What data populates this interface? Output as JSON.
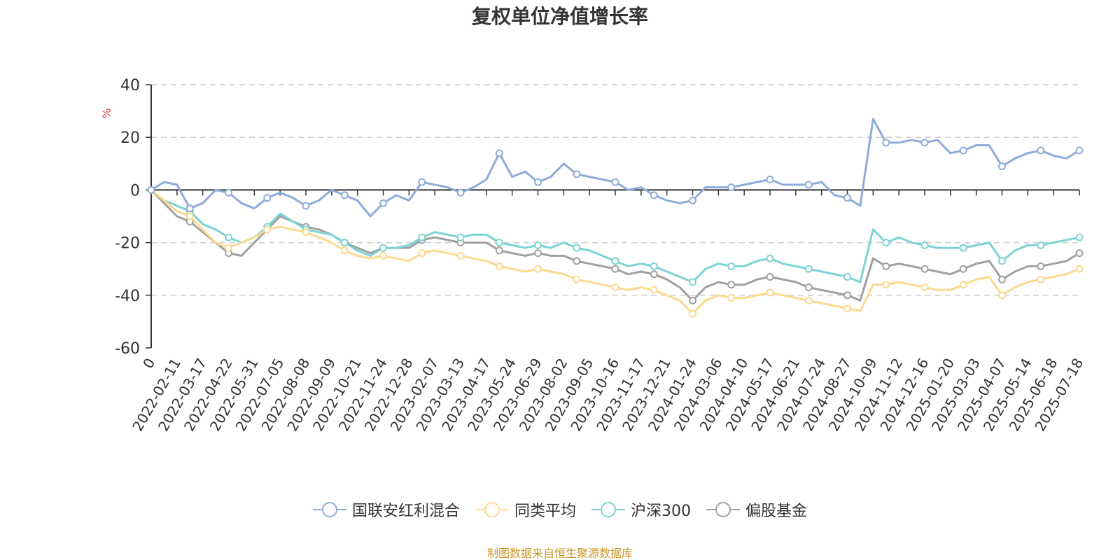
{
  "page_title": "复权单位净值增长率",
  "source_note": "制图数据来自恒生聚源数据库",
  "chart_data": {
    "type": "line",
    "title": "复权单位净值增长率",
    "xlabel": "",
    "ylabel": "%",
    "ylim": [
      -60,
      40
    ],
    "yticks": [
      40,
      20,
      0,
      -20,
      -40,
      -60
    ],
    "grid": "horizontal-dashed",
    "legend_position": "bottom-center",
    "x_tick_labels": [
      "0",
      "2022-02-11",
      "2022-03-17",
      "2022-04-22",
      "2022-05-31",
      "2022-07-05",
      "2022-08-08",
      "2022-09-09",
      "2022-10-21",
      "2022-11-24",
      "2022-12-28",
      "2023-02-07",
      "2023-03-13",
      "2023-04-17",
      "2023-05-24",
      "2023-06-29",
      "2023-08-02",
      "2023-09-05",
      "2023-10-16",
      "2023-11-17",
      "2023-12-21",
      "2024-01-24",
      "2024-03-06",
      "2024-04-10",
      "2024-05-17",
      "2024-06-21",
      "2024-07-24",
      "2024-08-27",
      "2024-10-09",
      "2024-11-12",
      "2024-12-16",
      "2025-01-20",
      "2025-03-03",
      "2025-04-07",
      "2025-05-14",
      "2025-06-18",
      "2025-07-18"
    ],
    "x": [
      "2022-01-06",
      "2022-01-20",
      "2022-02-11",
      "2022-02-25",
      "2022-03-17",
      "2022-04-01",
      "2022-04-22",
      "2022-05-12",
      "2022-05-31",
      "2022-06-17",
      "2022-07-05",
      "2022-07-20",
      "2022-08-08",
      "2022-08-24",
      "2022-09-09",
      "2022-09-28",
      "2022-10-21",
      "2022-11-08",
      "2022-11-24",
      "2022-12-12",
      "2022-12-28",
      "2023-01-16",
      "2023-02-07",
      "2023-02-23",
      "2023-03-13",
      "2023-03-29",
      "2023-04-17",
      "2023-05-06",
      "2023-05-24",
      "2023-06-09",
      "2023-06-29",
      "2023-07-17",
      "2023-08-02",
      "2023-08-18",
      "2023-09-05",
      "2023-09-21",
      "2023-10-16",
      "2023-11-01",
      "2023-11-17",
      "2023-12-05",
      "2023-12-21",
      "2024-01-08",
      "2024-01-24",
      "2024-02-19",
      "2024-03-06",
      "2024-03-22",
      "2024-04-10",
      "2024-04-26",
      "2024-05-17",
      "2024-06-04",
      "2024-06-21",
      "2024-07-08",
      "2024-07-24",
      "2024-08-09",
      "2024-08-27",
      "2024-09-13",
      "2024-10-09",
      "2024-10-25",
      "2024-11-12",
      "2024-11-28",
      "2024-12-16",
      "2025-01-02",
      "2025-01-20",
      "2025-02-12",
      "2025-03-03",
      "2025-03-19",
      "2025-04-07",
      "2025-04-23",
      "2025-05-14",
      "2025-05-30",
      "2025-06-18",
      "2025-07-03",
      "2025-07-18"
    ],
    "series": [
      {
        "name": "国联安红利混合",
        "color": "#8eacd9",
        "values": [
          0,
          3,
          2,
          -7,
          -5,
          0,
          -1,
          -5,
          -7,
          -3,
          -1,
          -3,
          -6,
          -4,
          0,
          -2,
          -4,
          -10,
          -5,
          -2,
          -4,
          3,
          2,
          1,
          -1,
          1,
          4,
          14,
          5,
          7,
          3,
          5,
          10,
          6,
          5,
          4,
          3,
          0,
          1,
          -2,
          -4,
          -5,
          -4,
          1,
          1,
          1,
          2,
          3,
          4,
          2,
          2,
          2,
          3,
          -2,
          -3,
          -6,
          27,
          18,
          18,
          19,
          18,
          19,
          14,
          15,
          17,
          17,
          9,
          12,
          14,
          15,
          13,
          12,
          15
        ]
      },
      {
        "name": "同类平均",
        "color": "#fcd98f",
        "values": [
          0,
          -4,
          -8,
          -10,
          -15,
          -20,
          -22,
          -20,
          -18,
          -15,
          -14,
          -15,
          -16,
          -18,
          -20,
          -23,
          -25,
          -26,
          -25,
          -26,
          -27,
          -24,
          -23,
          -24,
          -25,
          -26,
          -27,
          -29,
          -30,
          -31,
          -30,
          -31,
          -32,
          -34,
          -35,
          -36,
          -37,
          -38,
          -37,
          -38,
          -40,
          -42,
          -47,
          -42,
          -40,
          -41,
          -41,
          -40,
          -39,
          -40,
          -41,
          -42,
          -43,
          -44,
          -45,
          -46,
          -36,
          -36,
          -35,
          -36,
          -37,
          -38,
          -38,
          -36,
          -34,
          -33,
          -40,
          -37,
          -35,
          -34,
          -33,
          -32,
          -30
        ]
      },
      {
        "name": "沪深300",
        "color": "#7dd3d3",
        "values": [
          0,
          -4,
          -6,
          -8,
          -13,
          -15,
          -18,
          -20,
          -18,
          -14,
          -9,
          -12,
          -15,
          -16,
          -17,
          -20,
          -23,
          -25,
          -22,
          -22,
          -21,
          -18,
          -16,
          -17,
          -18,
          -17,
          -17,
          -20,
          -21,
          -22,
          -21,
          -22,
          -20,
          -22,
          -23,
          -25,
          -27,
          -29,
          -28,
          -29,
          -31,
          -33,
          -35,
          -30,
          -28,
          -29,
          -29,
          -27,
          -26,
          -28,
          -29,
          -30,
          -31,
          -32,
          -33,
          -35,
          -15,
          -20,
          -18,
          -20,
          -21,
          -22,
          -22,
          -22,
          -21,
          -20,
          -27,
          -23,
          -21,
          -21,
          -20,
          -19,
          -18
        ]
      },
      {
        "name": "偏股基金",
        "color": "#a0a0a0",
        "values": [
          0,
          -5,
          -10,
          -12,
          -16,
          -20,
          -24,
          -25,
          -20,
          -15,
          -10,
          -12,
          -14,
          -15,
          -17,
          -20,
          -22,
          -24,
          -22,
          -22,
          -22,
          -19,
          -18,
          -19,
          -20,
          -20,
          -20,
          -23,
          -24,
          -25,
          -24,
          -25,
          -25,
          -27,
          -28,
          -29,
          -30,
          -32,
          -31,
          -32,
          -34,
          -37,
          -42,
          -37,
          -35,
          -36,
          -36,
          -34,
          -33,
          -34,
          -35,
          -37,
          -38,
          -39,
          -40,
          -42,
          -26,
          -29,
          -28,
          -29,
          -30,
          -31,
          -32,
          -30,
          -28,
          -27,
          -34,
          -31,
          -29,
          -29,
          -28,
          -27,
          -24
        ]
      }
    ]
  }
}
